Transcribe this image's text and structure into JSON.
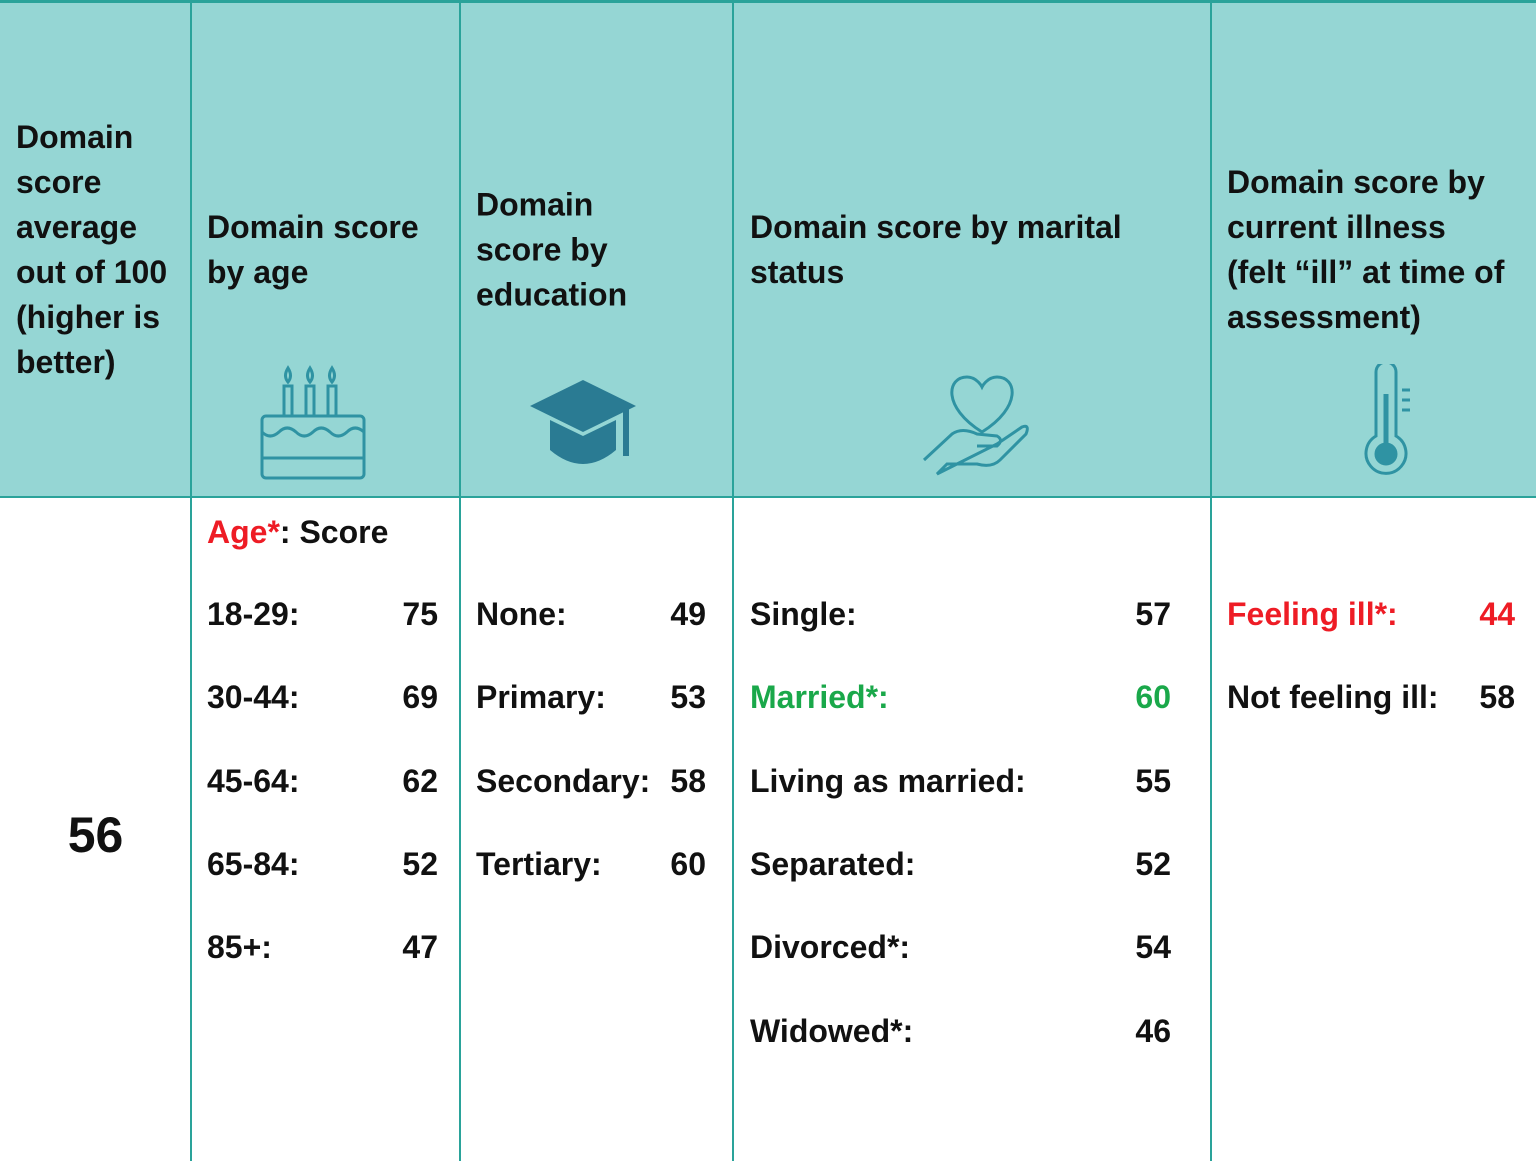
{
  "header": [
    "Domain score average out of 100 (higher is better)",
    "Domain score by age",
    "Domain score by education",
    "Domain score by marital status",
    "Domain score by current illness (felt “ill” at time of assessment)"
  ],
  "average": 56,
  "age": {
    "heading": {
      "label": "Age*",
      "rest": ": Score",
      "color": "#ee1c25"
    },
    "rows": [
      {
        "label": "18-29:",
        "value": 75
      },
      {
        "label": "30-44:",
        "value": 69
      },
      {
        "label": "45-64:",
        "value": 62
      },
      {
        "label": "65-84:",
        "value": 52
      },
      {
        "label": "85+:",
        "value": 47
      }
    ]
  },
  "education": {
    "rows": [
      {
        "label": "None:",
        "value": 49
      },
      {
        "label": "Primary:",
        "value": 53
      },
      {
        "label": "Secondary:",
        "value": 58
      },
      {
        "label": "Tertiary:",
        "value": 60
      }
    ]
  },
  "marital": {
    "rows": [
      {
        "label": "Single:",
        "value": 57
      },
      {
        "label": "Married*:",
        "value": 60,
        "color": "#1aa84a"
      },
      {
        "label": "Living as married:",
        "value": 55
      },
      {
        "label": "Separated:",
        "value": 52
      },
      {
        "label": "Divorced*:",
        "value": 54
      },
      {
        "label": "Widowed*:",
        "value": 46
      }
    ]
  },
  "illness": {
    "rows": [
      {
        "label": "Feeling ill*:",
        "value": 44,
        "color": "#ee1c25"
      },
      {
        "label": "Not feeling ill:",
        "value": 58
      }
    ]
  }
}
